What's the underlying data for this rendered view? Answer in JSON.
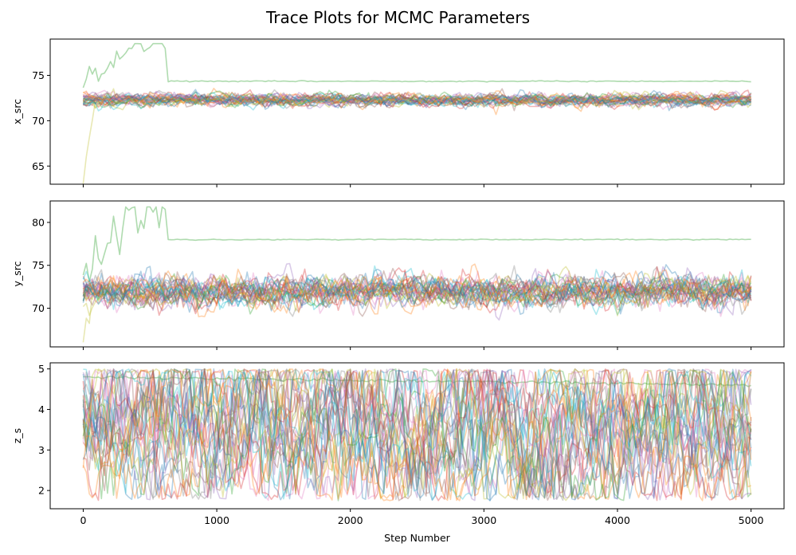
{
  "figure": {
    "title": "Trace Plots for MCMC Parameters"
  },
  "chart_data": [
    {
      "type": "line",
      "xlabel": "",
      "ylabel": "x_src",
      "xlim": [
        0,
        5000
      ],
      "ylim": [
        63,
        79
      ],
      "xticks": [
        0,
        1000,
        2000,
        3000,
        4000,
        5000
      ],
      "yticks": [
        65,
        70,
        75
      ],
      "series_count": 32,
      "stationary_center": 72.3,
      "stationary_spread": 0.35,
      "outlier_walker": {
        "burn_in_range": [
          74,
          78.5
        ],
        "burn_in_end_step": 620,
        "settled_value": 74.35
      },
      "low_start_walker": {
        "start_value": 63.5,
        "converge_step": 80
      }
    },
    {
      "type": "line",
      "xlabel": "",
      "ylabel": "y_src",
      "xlim": [
        0,
        5000
      ],
      "ylim": [
        65.5,
        82.5
      ],
      "xticks": [
        0,
        1000,
        2000,
        3000,
        4000,
        5000
      ],
      "yticks": [
        70,
        75,
        80
      ],
      "series_count": 32,
      "stationary_center": 72.0,
      "stationary_spread": 0.9,
      "outlier_walker": {
        "burn_in_range": [
          73,
          81.8
        ],
        "burn_in_end_step": 620,
        "settled_value": 78.0
      },
      "low_start_walker": {
        "start_value": 66.0,
        "converge_step": 80
      }
    },
    {
      "type": "line",
      "xlabel": "Step Number",
      "ylabel": "z_s",
      "xlim": [
        0,
        5000
      ],
      "ylim": [
        1.55,
        5.15
      ],
      "xticks": [
        0,
        1000,
        2000,
        3000,
        4000,
        5000
      ],
      "yticks": [
        2,
        3,
        4,
        5
      ],
      "series_count": 32,
      "value_range": [
        1.75,
        5.0
      ],
      "outlier_walker": {
        "start_value": 4.8,
        "end_value": 4.6
      }
    }
  ],
  "colors": [
    "#1f77b4",
    "#ff7f0e",
    "#2ca02c",
    "#d62728",
    "#9467bd",
    "#8c564b",
    "#e377c2",
    "#7f7f7f",
    "#bcbd22",
    "#17becf"
  ]
}
